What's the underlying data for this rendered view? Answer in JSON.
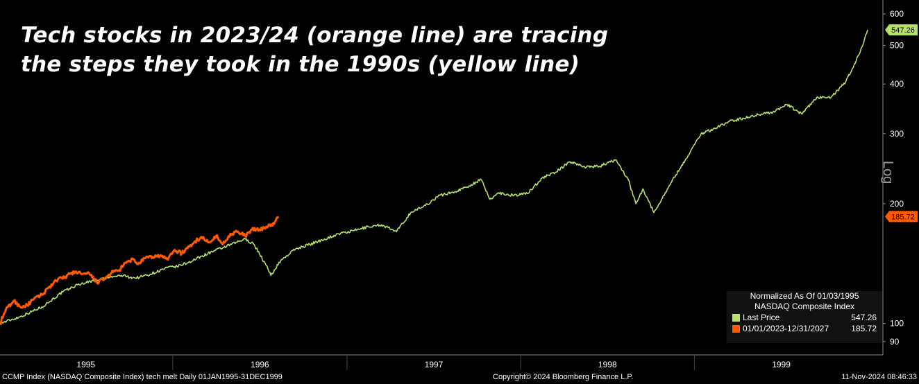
{
  "title": {
    "line1": "Tech stocks in 2023/24 (orange line) are tracing",
    "line2": "the steps they took in the 1990s (yellow line)"
  },
  "colors": {
    "background": "#000000",
    "series_1990s": "#b5e16c",
    "series_2023": "#ff5a00",
    "axis": "#8a8a8a",
    "tick_text": "#ffffff"
  },
  "axis_label": "Log",
  "legend": {
    "header1": "Normalized As Of 01/03/1995",
    "header2": "NASDAQ Composite Index",
    "items": [
      {
        "label": "Last Price",
        "value": "547.26"
      },
      {
        "label": "01/01/2023-12/31/2027",
        "value": "185.72"
      }
    ]
  },
  "footer": {
    "left": "CCMP Index (NASDAQ Composite Index) tech melt  Daily 01JAN1995-31DEC1999",
    "center": "Copyright© 2024 Bloomberg Finance L.P.",
    "right": "11-Nov-2024 08:46:33"
  },
  "chart_data": {
    "type": "line",
    "title": "Tech stocks in 2023/24 (orange line) are tracing the steps they took in the 1990s (yellow line)",
    "yscale": "log",
    "ylim": [
      84,
      620
    ],
    "y_ticks": [
      90,
      100,
      200,
      300,
      400,
      500,
      600
    ],
    "x_ticks": [
      "1995",
      "1996",
      "1997",
      "1998",
      "1999"
    ],
    "xlim": [
      "1995-01-03",
      "1999-12-31"
    ],
    "grid": false,
    "legend_position": "bottom-right",
    "last_value_tags": [
      "547.26",
      "185.72"
    ],
    "series": [
      {
        "name": "Last Price",
        "color": "#b5e16c",
        "x": [
          "1995-01-03",
          "1995-02-15",
          "1995-04-01",
          "1995-05-15",
          "1995-06-15",
          "1995-07-15",
          "1995-08-15",
          "1995-09-15",
          "1995-10-15",
          "1995-11-15",
          "1995-12-20",
          "1996-01-10",
          "1996-02-01",
          "1996-03-15",
          "1996-04-15",
          "1996-05-15",
          "1996-06-01",
          "1996-06-20",
          "1996-07-15",
          "1996-07-25",
          "1996-08-15",
          "1996-09-15",
          "1996-10-15",
          "1996-11-15",
          "1996-12-15",
          "1997-01-15",
          "1997-02-15",
          "1997-03-15",
          "1997-04-15",
          "1997-05-15",
          "1997-06-15",
          "1997-07-15",
          "1997-08-15",
          "1997-09-15",
          "1997-10-10",
          "1997-10-28",
          "1997-11-15",
          "1997-12-15",
          "1998-01-15",
          "1998-02-15",
          "1998-03-15",
          "1998-04-15",
          "1998-05-15",
          "1998-06-15",
          "1998-07-20",
          "1998-08-15",
          "1998-08-31",
          "1998-09-15",
          "1998-10-08",
          "1998-11-15",
          "1998-12-15",
          "1999-01-15",
          "1999-02-15",
          "1999-03-15",
          "1999-04-15",
          "1999-05-15",
          "1999-06-15",
          "1999-07-15",
          "1999-08-15",
          "1999-09-15",
          "1999-10-15",
          "1999-11-15",
          "1999-12-15",
          "1999-12-31"
        ],
        "values": [
          100,
          104,
          110,
          120,
          125,
          128,
          130,
          132,
          130,
          133,
          138,
          139,
          142,
          150,
          155,
          160,
          163,
          158,
          140,
          132,
          144,
          154,
          158,
          163,
          168,
          171,
          175,
          177,
          170,
          190,
          198,
          210,
          214,
          222,
          230,
          205,
          213,
          210,
          212,
          232,
          240,
          255,
          248,
          248,
          258,
          230,
          200,
          218,
          190,
          228,
          260,
          300,
          310,
          322,
          328,
          335,
          340,
          355,
          336,
          370,
          370,
          405,
          480,
          547.26
        ]
      },
      {
        "name": "01/01/2023-12/31/2027",
        "color": "#ff5a00",
        "x": [
          "1995-01-03",
          "1995-01-15",
          "1995-02-01",
          "1995-02-15",
          "1995-03-01",
          "1995-03-15",
          "1995-04-01",
          "1995-04-15",
          "1995-05-01",
          "1995-05-20",
          "1995-06-10",
          "1995-06-25",
          "1995-07-10",
          "1995-07-25",
          "1995-08-10",
          "1995-08-25",
          "1995-09-10",
          "1995-09-25",
          "1995-10-10",
          "1995-10-20",
          "1995-11-05",
          "1995-11-20",
          "1995-12-05",
          "1995-12-20",
          "1996-01-05",
          "1996-01-20",
          "1996-02-05",
          "1996-02-15",
          "1996-03-01",
          "1996-03-15",
          "1996-04-01",
          "1996-04-15",
          "1996-05-01",
          "1996-05-15",
          "1996-06-01",
          "1996-06-15",
          "1996-07-01",
          "1996-07-15",
          "1996-08-01",
          "1996-08-10"
        ],
        "values": [
          100,
          108,
          114,
          110,
          111,
          115,
          118,
          123,
          128,
          131,
          135,
          133,
          133,
          127,
          129,
          134,
          136,
          142,
          145,
          141,
          146,
          147,
          148,
          145,
          153,
          150,
          156,
          160,
          165,
          160,
          166,
          158,
          168,
          170,
          166,
          172,
          172,
          175,
          178,
          185.72
        ]
      }
    ]
  }
}
